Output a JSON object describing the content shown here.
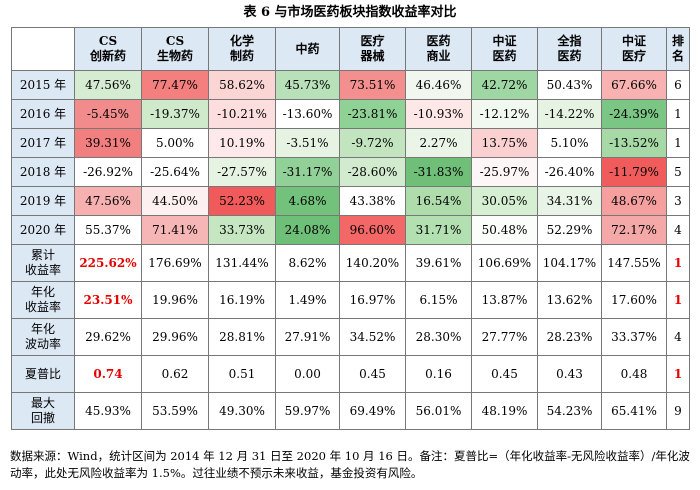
{
  "title": "表 6  与市场医药板块指数收益率对比",
  "headers": [
    [
      "CS",
      "创新药"
    ],
    [
      "CS",
      "生物药"
    ],
    [
      "化学",
      "制药"
    ],
    [
      "中药"
    ],
    [
      "医疗",
      "器械"
    ],
    [
      "医药",
      "商业"
    ],
    [
      "中证",
      "医药"
    ],
    [
      "全指",
      "医药"
    ],
    [
      "中证",
      "医疗"
    ],
    [
      "排",
      "名"
    ]
  ],
  "rows": [
    {
      "label": [
        "2015 年"
      ],
      "cells": [
        "47.56%",
        "77.47%",
        "58.62%",
        "45.73%",
        "73.51%",
        "46.46%",
        "42.72%",
        "50.43%",
        "67.66%",
        "6"
      ],
      "bg": [
        "#d6ecd2",
        "#f47f7f",
        "#fbd4d4",
        "#b8e0b9",
        "#f48f8f",
        "#f1f7ef",
        "#9ed7a3",
        "#ffffff",
        "#f9b2b2",
        "#ffffff"
      ]
    },
    {
      "label": [
        "2016 年"
      ],
      "cells": [
        "-5.45%",
        "-19.37%",
        "-10.21%",
        "-13.60%",
        "-23.81%",
        "-10.93%",
        "-12.12%",
        "-14.22%",
        "-24.39%",
        "1"
      ],
      "bg": [
        "#f28b8b",
        "#cfe9cb",
        "#fcdede",
        "#ffffff",
        "#90d196",
        "#fde7e7",
        "#f1f8ef",
        "#e6f3e3",
        "#7bc684",
        "#ffffff"
      ]
    },
    {
      "label": [
        "2017 年"
      ],
      "cells": [
        "39.31%",
        "5.00%",
        "10.19%",
        "-3.51%",
        "-9.72%",
        "2.27%",
        "13.75%",
        "5.10%",
        "-13.52%",
        "1"
      ],
      "bg": [
        "#f27f7f",
        "#ffffff",
        "#fde9e9",
        "#e6f3e3",
        "#c2e5bf",
        "#eaf5e8",
        "#fbd0d0",
        "#ffffff",
        "#a6d9a6",
        "#ffffff"
      ]
    },
    {
      "label": [
        "2018 年"
      ],
      "cells": [
        "-26.92%",
        "-25.64%",
        "-27.57%",
        "-31.17%",
        "-28.60%",
        "-31.83%",
        "-25.97%",
        "-26.40%",
        "-11.79%",
        "5"
      ],
      "bg": [
        "#ffffff",
        "#ffffff",
        "#e6f3e3",
        "#91d197",
        "#d2ebce",
        "#6fbf78",
        "#fdf6f6",
        "#ffffff",
        "#f05c5c",
        "#ffffff"
      ]
    },
    {
      "label": [
        "2019 年"
      ],
      "cells": [
        "47.56%",
        "44.50%",
        "52.23%",
        "4.68%",
        "43.38%",
        "16.54%",
        "30.05%",
        "34.31%",
        "48.67%",
        "3"
      ],
      "bg": [
        "#f7b0b0",
        "#fdf0f0",
        "#f05a5a",
        "#73c27c",
        "#ffffff",
        "#aedcab",
        "#d6eed2",
        "#e8f4e5",
        "#f59f9f",
        "#ffffff"
      ]
    },
    {
      "label": [
        "2020 年"
      ],
      "cells": [
        "55.37%",
        "71.41%",
        "33.73%",
        "24.08%",
        "96.60%",
        "31.71%",
        "50.48%",
        "52.29%",
        "72.17%",
        "4"
      ],
      "bg": [
        "#ffffff",
        "#f7b6b6",
        "#c6e6c2",
        "#6ebf77",
        "#f36767",
        "#b3e0b0",
        "#fbfdfb",
        "#ffffff",
        "#f5a8a8",
        "#ffffff"
      ]
    },
    {
      "label": [
        "累计",
        "收益率"
      ],
      "cells": [
        "225.62%",
        "176.69%",
        "131.44%",
        "8.62%",
        "140.20%",
        "39.61%",
        "106.69%",
        "104.17%",
        "147.55%",
        "1"
      ],
      "hl": [
        0,
        9
      ]
    },
    {
      "label": [
        "年化",
        "收益率"
      ],
      "cells": [
        "23.51%",
        "19.96%",
        "16.19%",
        "1.49%",
        "16.97%",
        "6.15%",
        "13.87%",
        "13.62%",
        "17.60%",
        "1"
      ],
      "hl": [
        0,
        9
      ]
    },
    {
      "label": [
        "年化",
        "波动率"
      ],
      "cells": [
        "29.62%",
        "29.96%",
        "28.81%",
        "27.91%",
        "34.52%",
        "28.30%",
        "27.77%",
        "28.23%",
        "33.37%",
        "4"
      ],
      "hl": []
    },
    {
      "label": [
        "夏普比"
      ],
      "cells": [
        "0.74",
        "0.62",
        "0.51",
        "0.00",
        "0.45",
        "0.16",
        "0.45",
        "0.43",
        "0.48",
        "1"
      ],
      "hl": [
        0,
        9
      ]
    },
    {
      "label": [
        "最大",
        "回撤"
      ],
      "cells": [
        "45.93%",
        "53.59%",
        "49.30%",
        "59.97%",
        "69.49%",
        "56.01%",
        "48.19%",
        "54.23%",
        "65.41%",
        "9"
      ],
      "hl": []
    }
  ],
  "note": "数据来源：Wind，统计区间为 2014 年 12 月 31 日至 2020 年 10 月 16 日。备注：夏普比=（年化收益率-无风险收益率）/年化波动率，此处无风险收益率为 1.5%。过往业绩不预示未来收益，基金投资有风险。"
}
